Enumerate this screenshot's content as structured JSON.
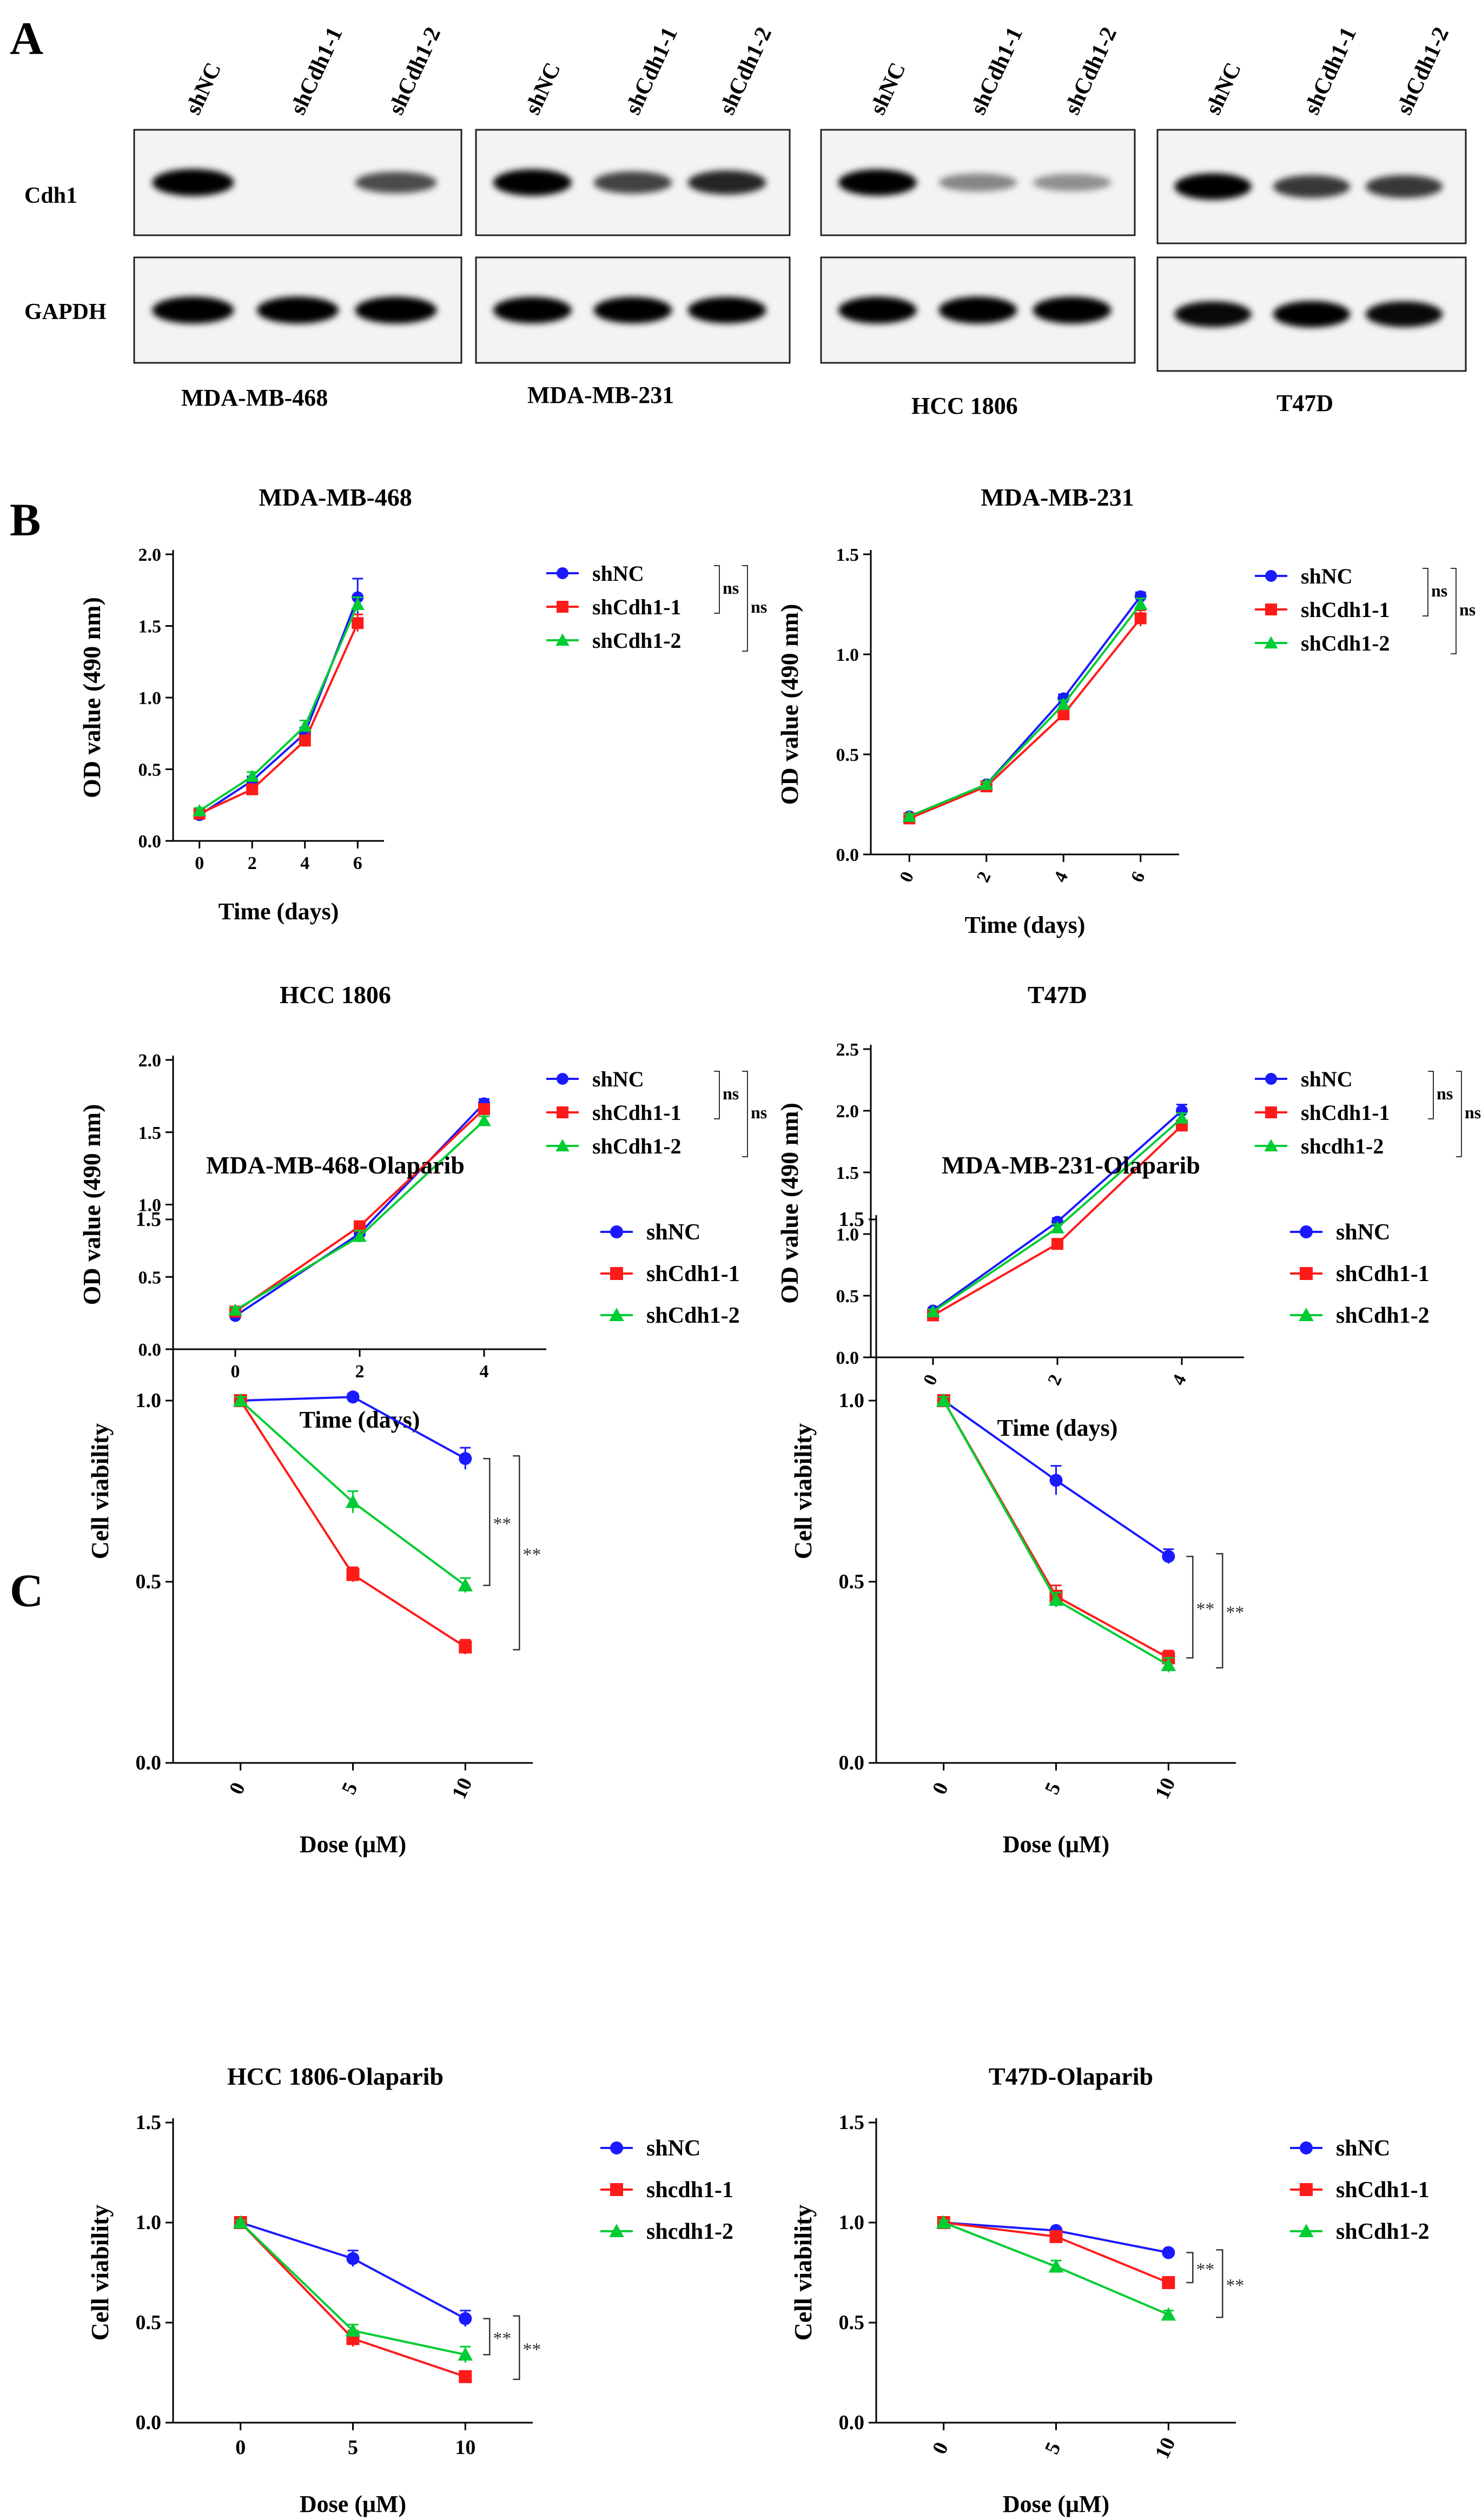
{
  "panel_labels": {
    "a": "A",
    "b": "B",
    "c": "C"
  },
  "western_blot": {
    "lane_labels": [
      [
        "shNC",
        "shCdh1-1",
        "shCdh1-2"
      ],
      [
        "shNC",
        "shCdh1-1",
        "shCdh1-2"
      ],
      [
        "shNC",
        "shCdh1-1",
        "shCdh1-2"
      ],
      [
        "shNC",
        "shCdh1-1",
        "shCdh1-2"
      ]
    ],
    "row_labels": [
      "Cdh1",
      "GAPDH"
    ],
    "cell_lines": [
      "MDA-MB-468",
      "MDA-MB-231",
      "HCC 1806",
      "T47D"
    ],
    "band_intensity": {
      "Cdh1": [
        [
          1.0,
          0.0,
          0.55
        ],
        [
          0.95,
          0.6,
          0.75
        ],
        [
          0.95,
          0.25,
          0.2
        ],
        [
          0.95,
          0.65,
          0.65
        ]
      ],
      "GAPDH": [
        [
          1.0,
          1.0,
          1.0
        ],
        [
          0.95,
          0.95,
          0.95
        ],
        [
          1.0,
          1.0,
          1.0
        ],
        [
          0.9,
          0.95,
          0.9
        ]
      ]
    }
  },
  "colors": {
    "shNC": "#1a1aff",
    "shCdh1_1": "#ff1a1a",
    "shCdh1_2": "#00cc33"
  },
  "chart_data": [
    {
      "type": "line",
      "title": "MDA-MB-468",
      "xlabel": "Time (days)",
      "ylabel": "OD value (490 nm)",
      "x": [
        0,
        2,
        4,
        6
      ],
      "xlim": [
        -1,
        7
      ],
      "ylim": [
        0,
        2.0
      ],
      "yticks": [
        "0.0",
        "0.5",
        "1.0",
        "1.5",
        "2.0"
      ],
      "xtick_labels": [
        "0",
        "2",
        "4",
        "6"
      ],
      "rotated_xticks": false,
      "series": [
        {
          "name": "shNC",
          "values": [
            0.18,
            0.42,
            0.75,
            1.7
          ],
          "err": [
            0.02,
            0.03,
            0.04,
            0.13
          ]
        },
        {
          "name": "shCdh1-1",
          "values": [
            0.19,
            0.36,
            0.7,
            1.52
          ],
          "err": [
            0.02,
            0.03,
            0.03,
            0.06
          ]
        },
        {
          "name": "shCdh1-2",
          "values": [
            0.21,
            0.45,
            0.8,
            1.65
          ],
          "err": [
            0.02,
            0.03,
            0.04,
            0.05
          ]
        }
      ],
      "annotations": [
        "ns",
        "ns"
      ]
    },
    {
      "type": "line",
      "title": "MDA-MB-231",
      "xlabel": "Time (days)",
      "ylabel": "OD value (490 nm)",
      "x": [
        0,
        2,
        4,
        6
      ],
      "xlim": [
        -1,
        7
      ],
      "ylim": [
        0,
        1.5
      ],
      "yticks": [
        "0.0",
        "0.5",
        "1.0",
        "1.5"
      ],
      "xtick_labels": [
        "0",
        "2",
        "4",
        "6"
      ],
      "rotated_xticks": true,
      "series": [
        {
          "name": "shNC",
          "values": [
            0.19,
            0.35,
            0.78,
            1.29
          ],
          "err": [
            0.01,
            0.01,
            0.02,
            0.02
          ]
        },
        {
          "name": "shCdh1-1",
          "values": [
            0.18,
            0.34,
            0.7,
            1.18
          ],
          "err": [
            0.01,
            0.01,
            0.02,
            0.04
          ]
        },
        {
          "name": "shCdh1-2",
          "values": [
            0.19,
            0.35,
            0.75,
            1.25
          ],
          "err": [
            0.01,
            0.01,
            0.02,
            0.03
          ]
        }
      ],
      "annotations": [
        "ns",
        "ns"
      ]
    },
    {
      "type": "line",
      "title": "HCC 1806",
      "xlabel": "Time (days)",
      "ylabel": "OD value (490 nm)",
      "x": [
        0,
        2,
        4
      ],
      "xlim": [
        -1,
        5
      ],
      "ylim": [
        0,
        2.0
      ],
      "yticks": [
        "0.0",
        "0.5",
        "1.0",
        "1.5",
        "2.0"
      ],
      "xtick_labels": [
        "0",
        "2",
        "4"
      ],
      "rotated_xticks": false,
      "series": [
        {
          "name": "shNC",
          "values": [
            0.23,
            0.8,
            1.7
          ],
          "err": [
            0.02,
            0.04,
            0.03
          ]
        },
        {
          "name": "shCdh1-1",
          "values": [
            0.26,
            0.85,
            1.66
          ],
          "err": [
            0.02,
            0.03,
            0.03
          ]
        },
        {
          "name": "shCdh1-2",
          "values": [
            0.27,
            0.78,
            1.58
          ],
          "err": [
            0.02,
            0.04,
            0.03
          ]
        }
      ],
      "annotations": [
        "ns",
        "ns"
      ]
    },
    {
      "type": "line",
      "title": "T47D",
      "xlabel": "Time (days)",
      "ylabel": "OD value (490 nm)",
      "x": [
        0,
        2,
        4
      ],
      "xlim": [
        -1,
        5
      ],
      "ylim": [
        0,
        2.5
      ],
      "yticks": [
        "0.0",
        "0.5",
        "1.0",
        "1.5",
        "2.0",
        "2.5"
      ],
      "xtick_labels": [
        "0",
        "2",
        "4"
      ],
      "rotated_xticks": true,
      "series": [
        {
          "name": "shNC",
          "values": [
            0.38,
            1.1,
            2.0
          ],
          "err": [
            0.02,
            0.03,
            0.05
          ]
        },
        {
          "name": "shCdh1-1",
          "values": [
            0.34,
            0.92,
            1.88
          ],
          "err": [
            0.02,
            0.03,
            0.04
          ]
        },
        {
          "name": "shcdh1-2",
          "values": [
            0.37,
            1.05,
            1.94
          ],
          "err": [
            0.02,
            0.03,
            0.04
          ]
        }
      ],
      "annotations": [
        "ns",
        "ns"
      ]
    },
    {
      "type": "line",
      "title": "MDA-MB-468-Olaparib",
      "xlabel": "Dose (μM)",
      "ylabel": "Cell viability",
      "x": [
        0,
        5,
        10
      ],
      "xlim": [
        -3,
        13
      ],
      "ylim": [
        0,
        1.5
      ],
      "yticks": [
        "0.0",
        "0.5",
        "1.0",
        "1.5"
      ],
      "xtick_labels": [
        "0",
        "5",
        "10"
      ],
      "rotated_xticks": true,
      "series": [
        {
          "name": "shNC",
          "values": [
            1.0,
            1.01,
            0.84
          ],
          "err": [
            0.01,
            0.01,
            0.03
          ]
        },
        {
          "name": "shCdh1-1",
          "values": [
            1.0,
            0.52,
            0.32
          ],
          "err": [
            0.01,
            0.02,
            0.02
          ]
        },
        {
          "name": "shCdh1-2",
          "values": [
            1.0,
            0.72,
            0.49
          ],
          "err": [
            0.01,
            0.03,
            0.02
          ]
        }
      ],
      "annotations": [
        "**",
        "**"
      ]
    },
    {
      "type": "line",
      "title": "MDA-MB-231-Olaparib",
      "xlabel": "Dose (μM)",
      "ylabel": "Cell viability",
      "x": [
        0,
        5,
        10
      ],
      "xlim": [
        -3,
        13
      ],
      "ylim": [
        0,
        1.5
      ],
      "yticks": [
        "0.0",
        "0.5",
        "1.0",
        "1.5"
      ],
      "xtick_labels": [
        "0",
        "5",
        "10"
      ],
      "rotated_xticks": true,
      "series": [
        {
          "name": "shNC",
          "values": [
            1.0,
            0.78,
            0.57
          ],
          "err": [
            0.01,
            0.04,
            0.02
          ]
        },
        {
          "name": "shCdh1-1",
          "values": [
            1.0,
            0.46,
            0.29
          ],
          "err": [
            0.01,
            0.03,
            0.02
          ]
        },
        {
          "name": "shCdh1-2",
          "values": [
            1.0,
            0.45,
            0.27
          ],
          "err": [
            0.01,
            0.02,
            0.02
          ]
        }
      ],
      "annotations": [
        "**",
        "**"
      ]
    },
    {
      "type": "line",
      "title": "HCC 1806-Olaparib",
      "xlabel": "Dose (μM)",
      "ylabel": "Cell viability",
      "x": [
        0,
        5,
        10
      ],
      "xlim": [
        -3,
        13
      ],
      "ylim": [
        0,
        1.5
      ],
      "yticks": [
        "0.0",
        "0.5",
        "1.0",
        "1.5"
      ],
      "xtick_labels": [
        "0",
        "5",
        "10"
      ],
      "rotated_xticks": false,
      "series": [
        {
          "name": "shNC",
          "values": [
            1.0,
            0.82,
            0.52
          ],
          "err": [
            0.01,
            0.04,
            0.04
          ]
        },
        {
          "name": "shcdh1-1",
          "values": [
            1.0,
            0.42,
            0.23
          ],
          "err": [
            0.01,
            0.04,
            0.02
          ]
        },
        {
          "name": "shcdh1-2",
          "values": [
            1.0,
            0.46,
            0.34
          ],
          "err": [
            0.01,
            0.03,
            0.04
          ]
        }
      ],
      "annotations": [
        "**",
        "**"
      ]
    },
    {
      "type": "line",
      "title": "T47D-Olaparib",
      "xlabel": "Dose (μM)",
      "ylabel": "Cell viability",
      "x": [
        0,
        5,
        10
      ],
      "xlim": [
        -3,
        13
      ],
      "ylim": [
        0,
        1.5
      ],
      "yticks": [
        "0.0",
        "0.5",
        "1.0",
        "1.5"
      ],
      "xtick_labels": [
        "0",
        "5",
        "10"
      ],
      "rotated_xticks": true,
      "series": [
        {
          "name": "shNC",
          "values": [
            1.0,
            0.96,
            0.85
          ],
          "err": [
            0.01,
            0.01,
            0.01
          ]
        },
        {
          "name": "shCdh1-1",
          "values": [
            1.0,
            0.93,
            0.7
          ],
          "err": [
            0.01,
            0.01,
            0.02
          ]
        },
        {
          "name": "shCdh1-2",
          "values": [
            1.0,
            0.78,
            0.54
          ],
          "err": [
            0.01,
            0.03,
            0.02
          ]
        }
      ],
      "annotations": [
        "**",
        "**"
      ]
    }
  ]
}
